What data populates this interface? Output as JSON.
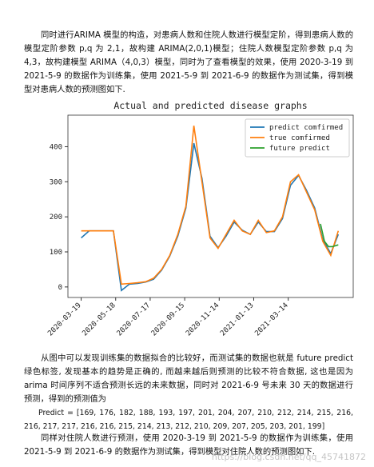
{
  "paragraphs": [
    "同时进行ARIMA 模型的构造，对患病人数和住院人数进行模型定阶，得到患病人数的模型定阶参数 p,q 为 2,1，故构建 ARIMA(2,0,1)模型；住院人数模型定阶参数 p,q 为 4,3，故构建模型 ARIMA（4,0,3）模型，同时为了查看模型的效果，使用 2020-3-19 到 2021-5-9 的数据作为训练集，使用 2021-5-9 到 2021-6-9 的数据作为测试集，得到模型对患病人数的预测图如下.",
    "从图中可以发现训练集的数据拟合的比较好，而测试集的数据也就是 future predict 绿色标签, 发现基本的趋势是正确的, 而越来越后则预测的比较不符合数据, 这也是因为 arima 时间序列不适合预测长远的未来数据，同时对 2021-6-9 号未来 30 天的数据进行预测，得到的预测值为",
    "Predict = [169, 176, 182, 188, 193, 197, 201, 204, 207, 210, 212, 214, 215, 216, 216, 217, 217, 216, 216, 215, 214, 213, 212, 210, 209, 207, 205, 203, 201, 199]",
    "同样对住院人数进行预测，使用 2020-3-19 到 2021-5-9 的数据作为训练集，使用 2021-5-9 到 2021-6-9 的数据作为测试集，得到模型对住院人数的预测图如下."
  ],
  "watermark": "https://blog.csdn.net/qq_45741872",
  "chart_data": {
    "type": "line",
    "title": "Actual and predicted disease graphs",
    "x": [
      "2020-03-19",
      "2020-04-02",
      "2020-04-16",
      "2020-04-30",
      "2020-05-14",
      "2020-05-28",
      "2020-06-11",
      "2020-06-25",
      "2020-07-09",
      "2020-07-23",
      "2020-08-06",
      "2020-08-20",
      "2020-09-03",
      "2020-09-17",
      "2020-10-01",
      "2020-10-15",
      "2020-10-29",
      "2020-11-12",
      "2020-11-26",
      "2020-12-10",
      "2020-12-24",
      "2021-01-07",
      "2021-01-21",
      "2021-02-04",
      "2021-02-18",
      "2021-03-04",
      "2021-03-18",
      "2021-04-01",
      "2021-04-15",
      "2021-04-29",
      "2021-05-13",
      "2021-05-27",
      "2021-06-09"
    ],
    "series": [
      {
        "name": "predict comfirmed",
        "color": "#1f77b4",
        "values": [
          140,
          160,
          160,
          160,
          160,
          -10,
          8,
          10,
          14,
          22,
          48,
          88,
          145,
          225,
          410,
          310,
          145,
          112,
          145,
          185,
          162,
          150,
          185,
          158,
          158,
          195,
          290,
          318,
          275,
          225,
          135,
          95,
          150
        ]
      },
      {
        "name": "true comfirmed",
        "color": "#ff7f0e",
        "values": [
          160,
          160,
          160,
          160,
          160,
          8,
          10,
          12,
          15,
          25,
          50,
          90,
          150,
          230,
          460,
          300,
          140,
          110,
          150,
          190,
          160,
          150,
          190,
          155,
          160,
          200,
          300,
          320,
          270,
          220,
          130,
          90,
          160
        ]
      },
      {
        "name": "future predict",
        "color": "#2ca02c",
        "x": [
          "2021-05-09",
          "2021-05-16",
          "2021-05-23",
          "2021-05-30",
          "2021-06-09"
        ],
        "values": [
          180,
          130,
          115,
          115,
          120
        ]
      }
    ],
    "xlim": [
      "2020-02-25",
      "2021-07-05"
    ],
    "xticks": [
      "2020-03-19",
      "2020-05-18",
      "2020-07-17",
      "2020-09-15",
      "2020-11-14",
      "2021-01-13",
      "2021-03-14"
    ],
    "ylim": [
      -30,
      490
    ],
    "yticks": [
      0,
      100,
      200,
      300,
      400
    ],
    "legend": "upper right"
  }
}
